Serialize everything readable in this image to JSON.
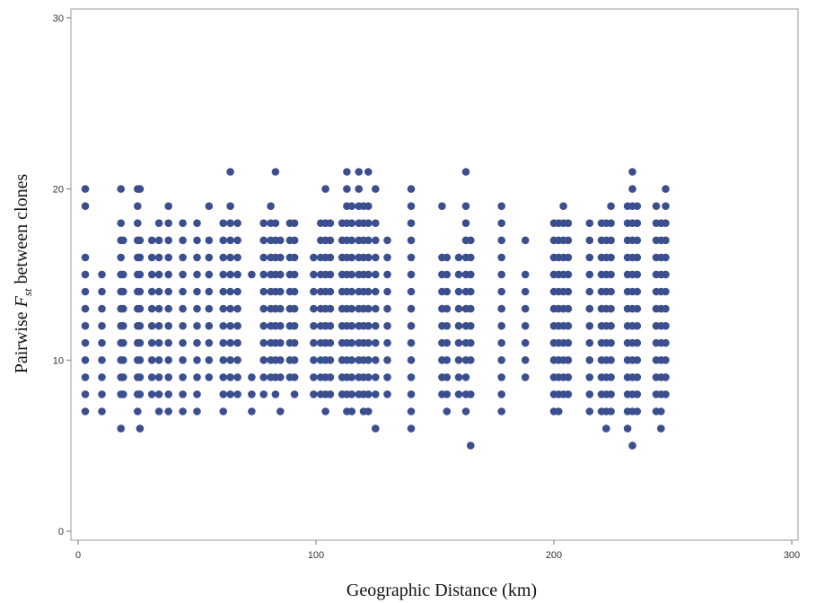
{
  "chart_data": {
    "type": "scatter",
    "title": "",
    "xlabel": "Geographic Distance (km)",
    "ylabel": {
      "prefix": "Pairwise ",
      "symbol": "F",
      "subscript": "st",
      "suffix": " between clones"
    },
    "xlim": [
      0,
      300
    ],
    "ylim": [
      0,
      30
    ],
    "xticks": [
      "0",
      "100",
      "200",
      "300"
    ],
    "yticks": [
      "0",
      "10",
      "20",
      "30"
    ],
    "grid": false,
    "marker_color": "#3b4f8f",
    "columns": [
      {
        "x": 3,
        "y": [
          7,
          8,
          9,
          10,
          11,
          12,
          13,
          14,
          15,
          16,
          19,
          20
        ]
      },
      {
        "x": 10,
        "y": [
          7,
          8,
          9,
          10,
          11,
          12,
          13,
          14,
          15
        ]
      },
      {
        "x": 18,
        "y": [
          6,
          8,
          9,
          10,
          11,
          12,
          13,
          14,
          15,
          16,
          17,
          18,
          20
        ]
      },
      {
        "x": 19,
        "y": [
          8,
          9,
          10,
          11,
          12,
          13,
          14,
          15,
          17
        ]
      },
      {
        "x": 25,
        "y": [
          7,
          8,
          9,
          10,
          11,
          12,
          13,
          14,
          15,
          16,
          17,
          18,
          19,
          20
        ]
      },
      {
        "x": 26,
        "y": [
          6,
          8,
          9,
          10,
          11,
          12,
          13,
          14,
          15,
          16,
          17,
          20
        ]
      },
      {
        "x": 31,
        "y": [
          8,
          9,
          10,
          11,
          12,
          13,
          14,
          15,
          16,
          17
        ]
      },
      {
        "x": 34,
        "y": [
          7,
          8,
          9,
          10,
          11,
          12,
          13,
          14,
          15,
          16,
          17,
          18
        ]
      },
      {
        "x": 38,
        "y": [
          7,
          8,
          9,
          10,
          11,
          12,
          13,
          14,
          15,
          16,
          17,
          18,
          19
        ]
      },
      {
        "x": 44,
        "y": [
          7,
          8,
          9,
          10,
          11,
          12,
          13,
          14,
          15,
          16,
          17,
          18
        ]
      },
      {
        "x": 50,
        "y": [
          7,
          8,
          9,
          10,
          11,
          12,
          13,
          14,
          15,
          16,
          17,
          18
        ]
      },
      {
        "x": 55,
        "y": [
          9,
          10,
          11,
          12,
          13,
          14,
          15,
          16,
          17,
          19
        ]
      },
      {
        "x": 61,
        "y": [
          7,
          8,
          9,
          10,
          11,
          12,
          13,
          14,
          15,
          16,
          17,
          18
        ]
      },
      {
        "x": 64,
        "y": [
          8,
          9,
          10,
          11,
          12,
          13,
          14,
          15,
          16,
          17,
          18,
          19,
          21
        ]
      },
      {
        "x": 67,
        "y": [
          8,
          9,
          10,
          11,
          12,
          13,
          14,
          15,
          16,
          17,
          18
        ]
      },
      {
        "x": 73,
        "y": [
          7,
          8,
          9,
          15
        ]
      },
      {
        "x": 78,
        "y": [
          8,
          9,
          10,
          11,
          12,
          13,
          14,
          15,
          16,
          17,
          18
        ]
      },
      {
        "x": 81,
        "y": [
          9,
          10,
          11,
          12,
          13,
          14,
          15,
          16,
          17,
          18,
          19
        ]
      },
      {
        "x": 83,
        "y": [
          8,
          9,
          10,
          11,
          12,
          13,
          14,
          15,
          16,
          17,
          18,
          21
        ]
      },
      {
        "x": 85,
        "y": [
          7,
          9,
          10,
          11,
          12,
          13,
          14,
          15,
          16,
          17
        ]
      },
      {
        "x": 89,
        "y": [
          9,
          10,
          11,
          12,
          13,
          14,
          15,
          16,
          17,
          18
        ]
      },
      {
        "x": 91,
        "y": [
          8,
          9,
          10,
          11,
          12,
          13,
          14,
          15,
          16,
          17,
          18
        ]
      },
      {
        "x": 99,
        "y": [
          8,
          9,
          10,
          11,
          12,
          13,
          14,
          15,
          16
        ]
      },
      {
        "x": 102,
        "y": [
          8,
          9,
          10,
          11,
          12,
          13,
          14,
          15,
          16,
          17,
          18
        ]
      },
      {
        "x": 104,
        "y": [
          7,
          8,
          9,
          10,
          11,
          12,
          13,
          14,
          15,
          16,
          17,
          18,
          20
        ]
      },
      {
        "x": 106,
        "y": [
          8,
          9,
          10,
          11,
          12,
          13,
          14,
          15,
          16,
          17,
          18
        ]
      },
      {
        "x": 111,
        "y": [
          8,
          9,
          10,
          11,
          12,
          13,
          14,
          15,
          16,
          17,
          18
        ]
      },
      {
        "x": 113,
        "y": [
          7,
          8,
          9,
          10,
          11,
          12,
          13,
          14,
          15,
          16,
          17,
          18,
          19,
          20,
          21
        ]
      },
      {
        "x": 115,
        "y": [
          7,
          8,
          9,
          10,
          11,
          12,
          13,
          14,
          15,
          16,
          17,
          18,
          19
        ]
      },
      {
        "x": 118,
        "y": [
          8,
          9,
          10,
          11,
          12,
          13,
          14,
          15,
          16,
          17,
          18,
          19,
          20,
          21
        ]
      },
      {
        "x": 120,
        "y": [
          7,
          8,
          9,
          10,
          11,
          12,
          13,
          14,
          15,
          16,
          17,
          18,
          19
        ]
      },
      {
        "x": 122,
        "y": [
          7,
          8,
          9,
          10,
          11,
          12,
          13,
          14,
          15,
          16,
          17,
          18,
          19,
          21
        ]
      },
      {
        "x": 125,
        "y": [
          6,
          8,
          9,
          10,
          11,
          12,
          13,
          14,
          15,
          16,
          17,
          18,
          20
        ]
      },
      {
        "x": 130,
        "y": [
          8,
          9,
          10,
          11,
          12,
          13,
          14,
          15,
          16,
          17
        ]
      },
      {
        "x": 140,
        "y": [
          6,
          7,
          8,
          9,
          10,
          11,
          12,
          13,
          14,
          15,
          16,
          17,
          18,
          19,
          20
        ]
      },
      {
        "x": 153,
        "y": [
          8,
          9,
          10,
          11,
          12,
          13,
          14,
          15,
          16,
          19
        ]
      },
      {
        "x": 155,
        "y": [
          7,
          8,
          9,
          10,
          11,
          12,
          13,
          14,
          15,
          16
        ]
      },
      {
        "x": 160,
        "y": [
          8,
          9,
          10,
          11,
          12,
          13,
          14,
          15,
          16
        ]
      },
      {
        "x": 163,
        "y": [
          7,
          8,
          9,
          10,
          11,
          12,
          13,
          14,
          15,
          16,
          17,
          18,
          19,
          21
        ]
      },
      {
        "x": 165,
        "y": [
          5,
          8,
          10,
          11,
          12,
          13,
          14,
          15,
          16,
          17
        ]
      },
      {
        "x": 178,
        "y": [
          7,
          8,
          9,
          10,
          11,
          12,
          13,
          14,
          15,
          16,
          17,
          18,
          19
        ]
      },
      {
        "x": 188,
        "y": [
          9,
          10,
          11,
          12,
          13,
          14,
          15,
          17
        ]
      },
      {
        "x": 200,
        "y": [
          7,
          8,
          9,
          10,
          11,
          12,
          13,
          14,
          15,
          16,
          17,
          18
        ]
      },
      {
        "x": 202,
        "y": [
          7,
          8,
          9,
          10,
          11,
          12,
          13,
          14,
          15,
          16,
          17,
          18
        ]
      },
      {
        "x": 204,
        "y": [
          8,
          9,
          10,
          11,
          12,
          13,
          14,
          15,
          16,
          17,
          18,
          19
        ]
      },
      {
        "x": 206,
        "y": [
          8,
          9,
          10,
          11,
          12,
          13,
          14,
          15,
          16,
          17,
          18
        ]
      },
      {
        "x": 215,
        "y": [
          7,
          8,
          9,
          10,
          11,
          12,
          13,
          14,
          15,
          16,
          17,
          18
        ]
      },
      {
        "x": 220,
        "y": [
          7,
          8,
          9,
          10,
          11,
          12,
          13,
          14,
          15,
          16,
          17,
          18
        ]
      },
      {
        "x": 222,
        "y": [
          6,
          7,
          8,
          9,
          10,
          11,
          12,
          13,
          14,
          15,
          16,
          17,
          18
        ]
      },
      {
        "x": 224,
        "y": [
          7,
          8,
          9,
          10,
          11,
          12,
          13,
          14,
          15,
          16,
          17,
          18,
          19
        ]
      },
      {
        "x": 231,
        "y": [
          6,
          7,
          8,
          9,
          10,
          11,
          12,
          13,
          14,
          15,
          16,
          17,
          18,
          19
        ]
      },
      {
        "x": 233,
        "y": [
          5,
          7,
          8,
          9,
          10,
          11,
          12,
          13,
          14,
          15,
          16,
          17,
          18,
          19,
          20,
          21
        ]
      },
      {
        "x": 235,
        "y": [
          7,
          8,
          9,
          10,
          11,
          12,
          13,
          14,
          15,
          16,
          17,
          18,
          19
        ]
      },
      {
        "x": 243,
        "y": [
          7,
          8,
          9,
          10,
          11,
          12,
          13,
          14,
          15,
          16,
          17,
          18,
          19
        ]
      },
      {
        "x": 245,
        "y": [
          6,
          7,
          8,
          9,
          10,
          11,
          12,
          13,
          14,
          15,
          16,
          17,
          18
        ]
      },
      {
        "x": 247,
        "y": [
          8,
          9,
          10,
          11,
          12,
          13,
          14,
          15,
          16,
          17,
          18,
          19,
          20
        ]
      }
    ]
  }
}
